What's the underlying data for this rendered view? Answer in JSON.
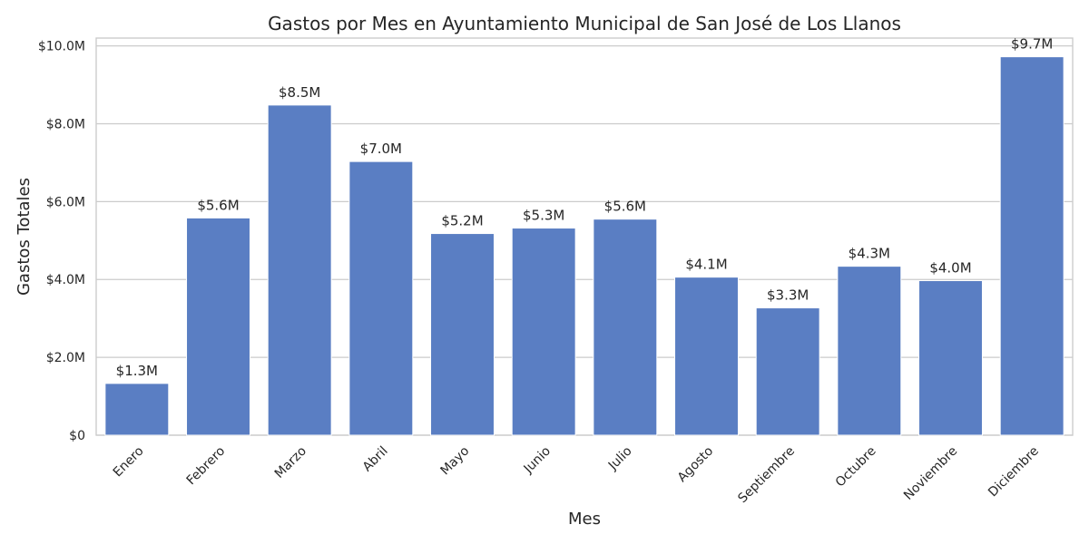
{
  "chart_data": {
    "type": "bar",
    "title": "Gastos por Mes en Ayuntamiento Municipal de San José de Los Llanos",
    "xlabel": "Mes",
    "ylabel": "Gastos Totales",
    "categories": [
      "Enero",
      "Febrero",
      "Marzo",
      "Abril",
      "Mayo",
      "Junio",
      "Julio",
      "Agosto",
      "Septiembre",
      "Octubre",
      "Noviembre",
      "Diciembre"
    ],
    "values": [
      1.33,
      5.58,
      8.48,
      7.03,
      5.18,
      5.32,
      5.55,
      4.06,
      3.27,
      4.34,
      3.97,
      9.72
    ],
    "value_labels": [
      "$1.3M",
      "$5.6M",
      "$8.5M",
      "$7.0M",
      "$5.2M",
      "$5.3M",
      "$5.6M",
      "$4.1M",
      "$3.3M",
      "$4.3M",
      "$4.0M",
      "$9.7M"
    ],
    "value_unit": "millions USD",
    "ylim": [
      0,
      10.2
    ],
    "yticks": [
      0,
      2,
      4,
      6,
      8,
      10
    ],
    "ytick_labels": [
      "$0",
      "$2.0M",
      "$4.0M",
      "$6.0M",
      "$8.0M",
      "$10.0M"
    ],
    "grid": true,
    "legend": "none",
    "bar_color": "#5a7ec3",
    "grid_color": "#cccccc",
    "text_color": "#262626"
  }
}
